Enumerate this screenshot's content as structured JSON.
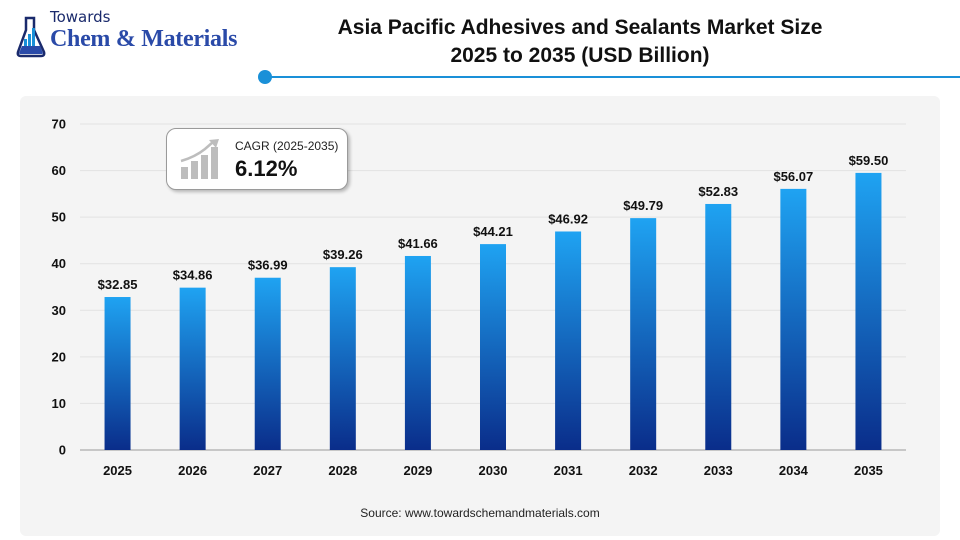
{
  "logo": {
    "line1": "Towards",
    "line2": "Chem & Materials"
  },
  "title": {
    "line1": "Asia Pacific Adhesives and Sealants Market Size",
    "line2": "2025 to 2035 (USD Billion)"
  },
  "cagr": {
    "label": "CAGR (2025-2035)",
    "value": "6.12%"
  },
  "source": "Source: www.towardschemandmaterials.com",
  "colors": {
    "bar_top": "#1fa3f2",
    "bar_bottom": "#0a2d8a",
    "accent": "#1a90d8"
  },
  "chart_data": {
    "type": "bar",
    "title": "Asia Pacific Adhesives and Sealants Market Size 2025 to 2035 (USD Billion)",
    "xlabel": "",
    "ylabel": "",
    "categories": [
      "2025",
      "2026",
      "2027",
      "2028",
      "2029",
      "2030",
      "2031",
      "2032",
      "2033",
      "2034",
      "2035"
    ],
    "values": [
      32.85,
      34.86,
      36.99,
      39.26,
      41.66,
      44.21,
      46.92,
      49.79,
      52.83,
      56.07,
      59.5
    ],
    "data_labels": [
      "$32.85",
      "$34.86",
      "$36.99",
      "$39.26",
      "$41.66",
      "$44.21",
      "$46.92",
      "$49.79",
      "$52.83",
      "$56.07",
      "$59.50"
    ],
    "ylim": [
      0,
      70
    ],
    "yticks": [
      0,
      10,
      20,
      30,
      40,
      50,
      60,
      70
    ],
    "grid": true
  }
}
